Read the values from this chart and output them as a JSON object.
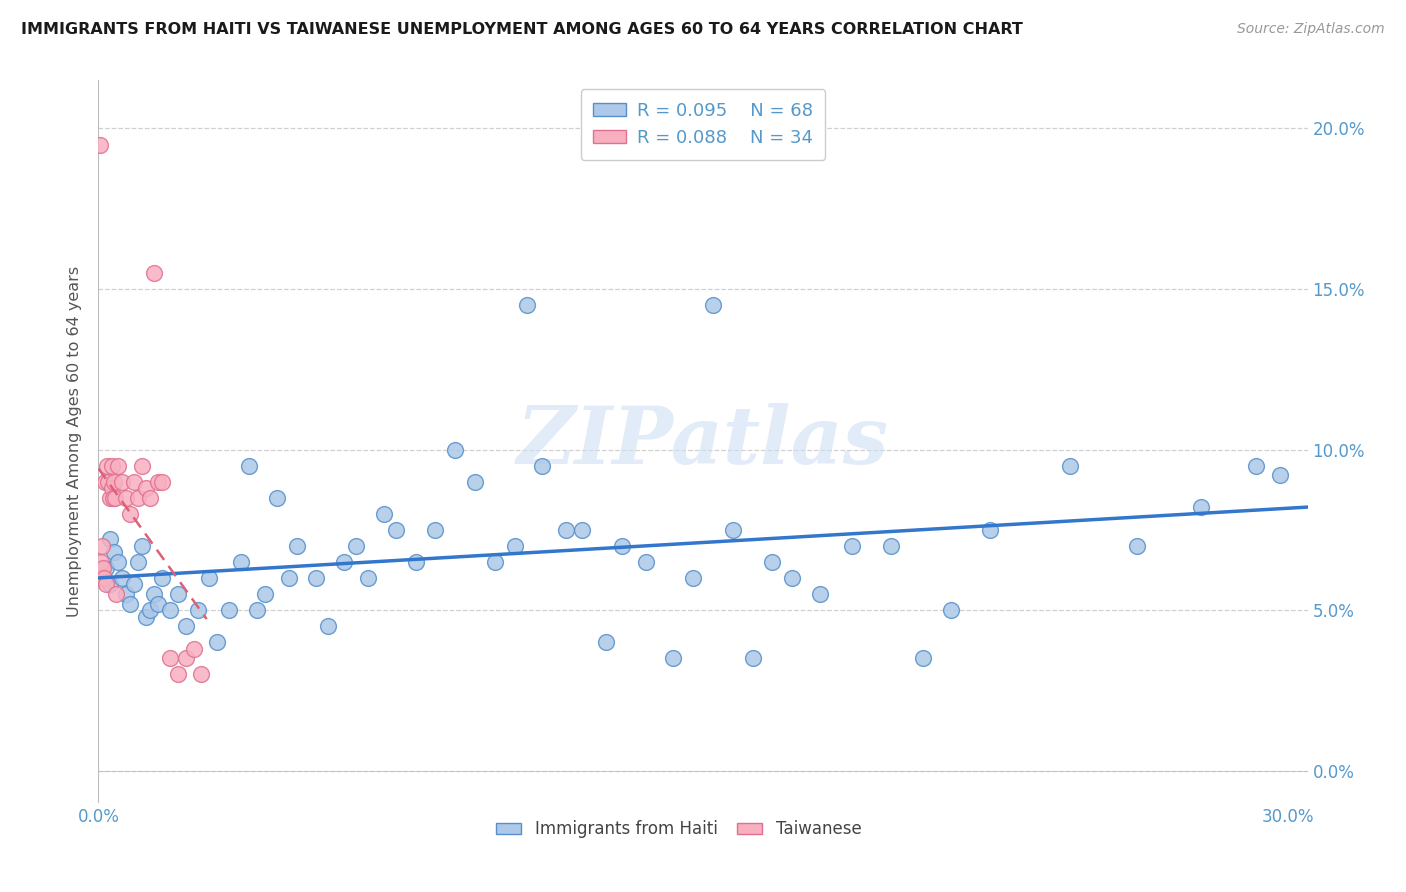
{
  "title": "IMMIGRANTS FROM HAITI VS TAIWANESE UNEMPLOYMENT AMONG AGES 60 TO 64 YEARS CORRELATION CHART",
  "source": "Source: ZipAtlas.com",
  "ylabel": "Unemployment Among Ages 60 to 64 years",
  "legend_label1": "Immigrants from Haiti",
  "legend_label2": "Taiwanese",
  "r1": "0.095",
  "n1": "68",
  "r2": "0.088",
  "n2": "34",
  "xmin": 0.0,
  "xmax": 0.305,
  "ymin": -0.01,
  "ymax": 0.215,
  "yticks": [
    0.0,
    0.05,
    0.1,
    0.15,
    0.2
  ],
  "ytick_labels": [
    "0.0%",
    "5.0%",
    "10.0%",
    "15.0%",
    "20.0%"
  ],
  "x_left_label": "0.0%",
  "x_right_label": "30.0%",
  "color_haiti_face": "#adc8e8",
  "color_haiti_edge": "#5590cc",
  "color_taiwanese_face": "#f8b0c0",
  "color_taiwanese_edge": "#e07090",
  "color_line_haiti": "#3377cc",
  "color_line_taiwanese": "#dd6077",
  "color_tick": "#5599cc",
  "watermark_text": "ZIPatlas",
  "haiti_x": [
    0.002,
    0.003,
    0.003,
    0.004,
    0.005,
    0.006,
    0.007,
    0.008,
    0.009,
    0.01,
    0.011,
    0.012,
    0.013,
    0.014,
    0.015,
    0.016,
    0.018,
    0.02,
    0.022,
    0.025,
    0.028,
    0.03,
    0.033,
    0.036,
    0.038,
    0.04,
    0.042,
    0.045,
    0.048,
    0.05,
    0.055,
    0.058,
    0.062,
    0.065,
    0.068,
    0.072,
    0.075,
    0.08,
    0.085,
    0.09,
    0.095,
    0.1,
    0.105,
    0.108,
    0.112,
    0.118,
    0.122,
    0.128,
    0.132,
    0.138,
    0.145,
    0.15,
    0.155,
    0.16,
    0.165,
    0.17,
    0.175,
    0.182,
    0.19,
    0.2,
    0.208,
    0.215,
    0.225,
    0.245,
    0.262,
    0.278,
    0.292,
    0.298
  ],
  "haiti_y": [
    0.063,
    0.072,
    0.058,
    0.068,
    0.065,
    0.06,
    0.055,
    0.052,
    0.058,
    0.065,
    0.07,
    0.048,
    0.05,
    0.055,
    0.052,
    0.06,
    0.05,
    0.055,
    0.045,
    0.05,
    0.06,
    0.04,
    0.05,
    0.065,
    0.095,
    0.05,
    0.055,
    0.085,
    0.06,
    0.07,
    0.06,
    0.045,
    0.065,
    0.07,
    0.06,
    0.08,
    0.075,
    0.065,
    0.075,
    0.1,
    0.09,
    0.065,
    0.07,
    0.145,
    0.095,
    0.075,
    0.075,
    0.04,
    0.07,
    0.065,
    0.035,
    0.06,
    0.145,
    0.075,
    0.035,
    0.065,
    0.06,
    0.055,
    0.07,
    0.07,
    0.035,
    0.05,
    0.075,
    0.095,
    0.07,
    0.082,
    0.095,
    0.092
  ],
  "taiwanese_x": [
    0.0003,
    0.0005,
    0.0007,
    0.001,
    0.0012,
    0.0015,
    0.0017,
    0.002,
    0.0022,
    0.0025,
    0.003,
    0.0033,
    0.0035,
    0.0038,
    0.004,
    0.0043,
    0.0045,
    0.005,
    0.006,
    0.007,
    0.008,
    0.009,
    0.01,
    0.011,
    0.012,
    0.013,
    0.014,
    0.015,
    0.016,
    0.018,
    0.02,
    0.022,
    0.024,
    0.026
  ],
  "taiwanese_y": [
    0.195,
    0.06,
    0.065,
    0.07,
    0.063,
    0.06,
    0.09,
    0.058,
    0.095,
    0.09,
    0.085,
    0.095,
    0.088,
    0.085,
    0.09,
    0.085,
    0.055,
    0.095,
    0.09,
    0.085,
    0.08,
    0.09,
    0.085,
    0.095,
    0.088,
    0.085,
    0.155,
    0.09,
    0.09,
    0.035,
    0.03,
    0.035,
    0.038,
    0.03
  ]
}
